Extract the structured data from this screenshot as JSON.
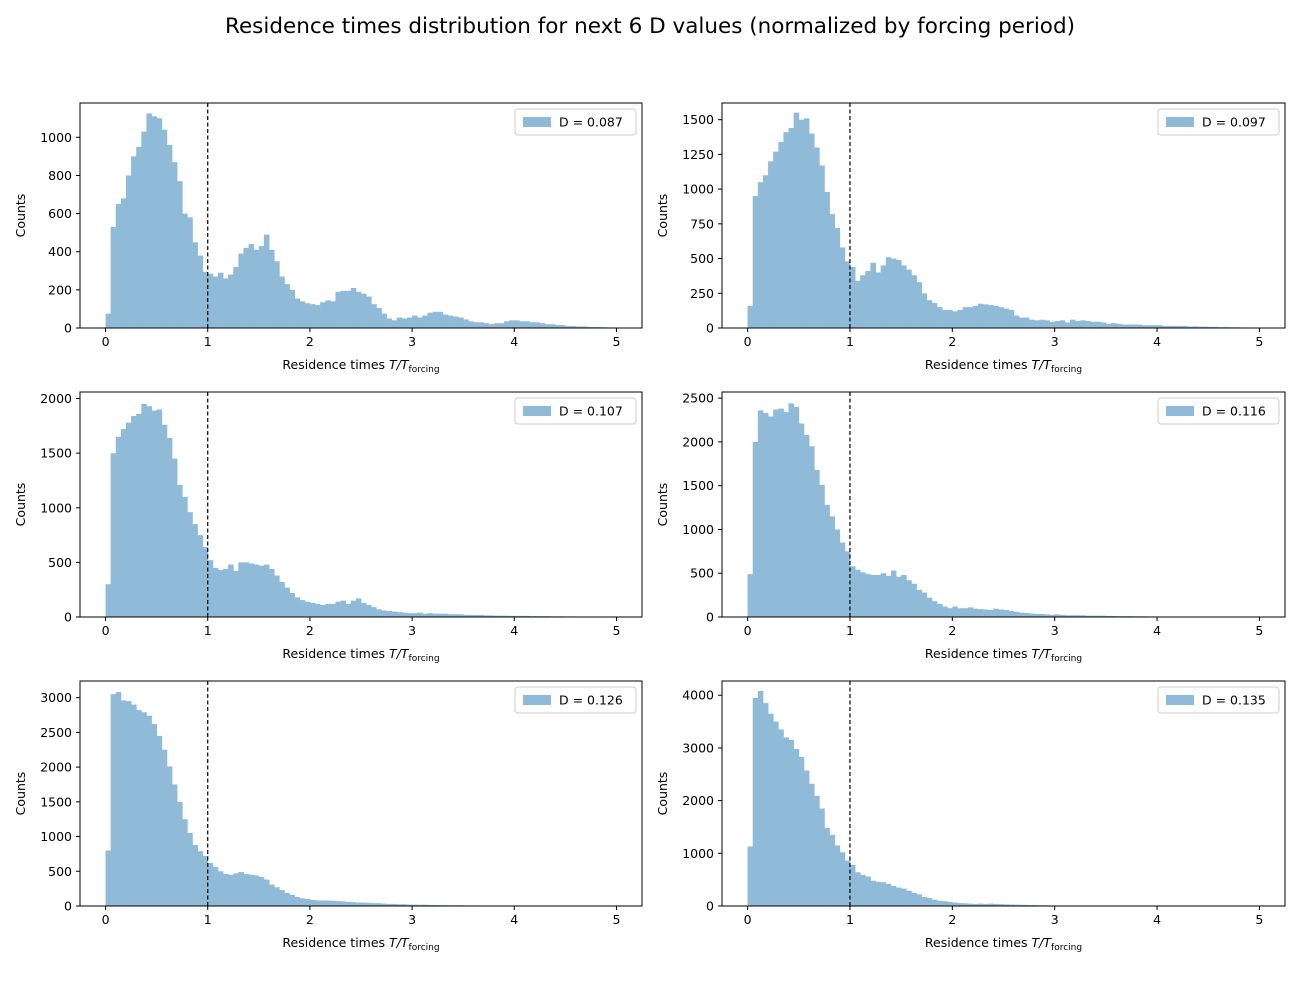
{
  "figure": {
    "title": "Residence times distribution for next 6 D values (normalized by forcing period)"
  },
  "colors": {
    "bar_fill": "#8fbad8",
    "marker_line": "#000000",
    "axes": "#000000"
  },
  "chart_data": [
    {
      "type": "bar",
      "legend": "D = 0.087",
      "legend_position": "upper right",
      "xlabel": "Residence times T/T_forcing",
      "xlabel_main": "Residence times ",
      "xlabel_math": "T/T",
      "xlabel_sub": "forcing",
      "ylabel": "Counts",
      "xlim": [
        -0.25,
        5.25
      ],
      "ylim": [
        0,
        1180
      ],
      "xticks": [
        0,
        1,
        2,
        3,
        4,
        5
      ],
      "yticks": [
        0,
        200,
        400,
        600,
        800,
        1000
      ],
      "vline_x": 1,
      "bin_start": 0,
      "bin_width": 0.05,
      "values": [
        75,
        530,
        650,
        680,
        800,
        900,
        950,
        1030,
        1125,
        1110,
        1100,
        1040,
        960,
        870,
        770,
        600,
        580,
        450,
        380,
        295,
        285,
        270,
        290,
        260,
        280,
        320,
        390,
        420,
        440,
        410,
        430,
        490,
        410,
        350,
        270,
        230,
        200,
        155,
        140,
        130,
        125,
        120,
        135,
        145,
        140,
        190,
        195,
        195,
        210,
        190,
        180,
        165,
        125,
        105,
        75,
        50,
        40,
        55,
        50,
        55,
        65,
        55,
        65,
        80,
        85,
        85,
        70,
        65,
        60,
        55,
        45,
        35,
        30,
        30,
        25,
        20,
        25,
        25,
        35,
        40,
        40,
        35,
        35,
        30,
        30,
        25,
        20,
        20,
        15,
        15,
        10,
        10,
        8,
        8,
        6,
        5,
        5,
        4,
        3,
        2
      ]
    },
    {
      "type": "bar",
      "legend": "D = 0.097",
      "legend_position": "upper right",
      "xlabel": "Residence times T/T_forcing",
      "xlabel_main": "Residence times ",
      "xlabel_math": "T/T",
      "xlabel_sub": "forcing",
      "ylabel": "Counts",
      "xlim": [
        -0.25,
        5.25
      ],
      "ylim": [
        0,
        1620
      ],
      "xticks": [
        0,
        1,
        2,
        3,
        4,
        5
      ],
      "yticks": [
        0,
        250,
        500,
        750,
        1000,
        1250,
        1500
      ],
      "vline_x": 1,
      "bin_start": 0,
      "bin_width": 0.05,
      "values": [
        160,
        950,
        1050,
        1100,
        1200,
        1270,
        1340,
        1410,
        1440,
        1550,
        1500,
        1510,
        1400,
        1300,
        1170,
        980,
        820,
        720,
        580,
        480,
        440,
        340,
        380,
        410,
        470,
        400,
        450,
        510,
        500,
        490,
        450,
        420,
        380,
        330,
        250,
        200,
        180,
        150,
        130,
        130,
        120,
        130,
        150,
        150,
        160,
        175,
        170,
        165,
        160,
        150,
        140,
        130,
        90,
        75,
        75,
        60,
        55,
        60,
        55,
        45,
        50,
        55,
        40,
        60,
        50,
        55,
        50,
        45,
        45,
        40,
        30,
        35,
        30,
        25,
        25,
        25,
        25,
        20,
        20,
        20,
        20,
        15,
        15,
        15,
        15,
        15,
        10,
        12,
        10,
        10,
        8,
        8,
        6,
        6,
        5,
        5,
        4,
        3,
        2,
        2
      ]
    },
    {
      "type": "bar",
      "legend": "D = 0.107",
      "legend_position": "upper right",
      "xlabel": "Residence times T/T_forcing",
      "xlabel_main": "Residence times ",
      "xlabel_math": "T/T",
      "xlabel_sub": "forcing",
      "ylabel": "Counts",
      "xlim": [
        -0.25,
        5.25
      ],
      "ylim": [
        0,
        2060
      ],
      "xticks": [
        0,
        1,
        2,
        3,
        4,
        5
      ],
      "yticks": [
        0,
        500,
        1000,
        1500,
        2000
      ],
      "vline_x": 1,
      "bin_start": 0,
      "bin_width": 0.05,
      "values": [
        300,
        1500,
        1650,
        1720,
        1780,
        1840,
        1860,
        1950,
        1930,
        1890,
        1900,
        1760,
        1640,
        1450,
        1210,
        1100,
        960,
        850,
        750,
        640,
        520,
        450,
        430,
        440,
        480,
        420,
        500,
        500,
        490,
        480,
        470,
        480,
        440,
        380,
        320,
        270,
        220,
        180,
        155,
        140,
        130,
        120,
        110,
        120,
        120,
        140,
        150,
        120,
        150,
        170,
        130,
        110,
        90,
        70,
        60,
        55,
        50,
        45,
        40,
        35,
        35,
        40,
        30,
        35,
        30,
        30,
        30,
        25,
        25,
        25,
        20,
        20,
        18,
        18,
        15,
        15,
        12,
        12,
        12,
        10,
        10,
        10,
        10,
        8,
        8,
        8,
        8,
        6,
        6,
        6,
        5,
        5,
        4,
        4,
        3,
        3,
        3,
        2,
        2,
        2
      ]
    },
    {
      "type": "bar",
      "legend": "D = 0.116",
      "legend_position": "upper right",
      "xlabel": "Residence times T/T_forcing",
      "xlabel_main": "Residence times ",
      "xlabel_math": "T/T",
      "xlabel_sub": "forcing",
      "ylabel": "Counts",
      "xlim": [
        -0.25,
        5.25
      ],
      "ylim": [
        0,
        2570
      ],
      "xticks": [
        0,
        1,
        2,
        3,
        4,
        5
      ],
      "yticks": [
        0,
        500,
        1000,
        1500,
        2000,
        2500
      ],
      "vline_x": 1,
      "bin_start": 0,
      "bin_width": 0.05,
      "values": [
        490,
        2000,
        2360,
        2330,
        2290,
        2370,
        2380,
        2340,
        2440,
        2400,
        2210,
        2080,
        1950,
        1680,
        1510,
        1280,
        1150,
        1000,
        850,
        750,
        580,
        540,
        510,
        490,
        480,
        480,
        500,
        470,
        530,
        460,
        480,
        420,
        380,
        310,
        280,
        220,
        180,
        150,
        120,
        100,
        120,
        100,
        100,
        110,
        95,
        90,
        85,
        80,
        95,
        85,
        80,
        70,
        60,
        50,
        45,
        40,
        35,
        35,
        30,
        25,
        30,
        25,
        20,
        20,
        20,
        20,
        15,
        15,
        15,
        15,
        12,
        12,
        10,
        10,
        10,
        8,
        8,
        8,
        6,
        6,
        6,
        5,
        5,
        5,
        4,
        4,
        4,
        3,
        3,
        3,
        2,
        2,
        2,
        2,
        1,
        1,
        1,
        1,
        1,
        1
      ]
    },
    {
      "type": "bar",
      "legend": "D = 0.126",
      "legend_position": "upper right",
      "xlabel": "Residence times T/T_forcing",
      "xlabel_main": "Residence times ",
      "xlabel_math": "T/T",
      "xlabel_sub": "forcing",
      "ylabel": "Counts",
      "xlim": [
        -0.25,
        5.25
      ],
      "ylim": [
        0,
        3240
      ],
      "xticks": [
        0,
        1,
        2,
        3,
        4,
        5
      ],
      "yticks": [
        0,
        500,
        1000,
        1500,
        2000,
        2500,
        3000
      ],
      "vline_x": 1,
      "bin_start": 0,
      "bin_width": 0.05,
      "values": [
        800,
        3050,
        3080,
        2960,
        2950,
        2900,
        2820,
        2790,
        2740,
        2620,
        2450,
        2250,
        2010,
        1750,
        1500,
        1250,
        1050,
        880,
        790,
        720,
        620,
        560,
        500,
        460,
        450,
        470,
        490,
        460,
        450,
        440,
        420,
        380,
        310,
        270,
        230,
        190,
        160,
        130,
        110,
        100,
        90,
        80,
        80,
        80,
        75,
        70,
        65,
        60,
        55,
        50,
        50,
        45,
        40,
        40,
        35,
        30,
        30,
        25,
        25,
        20,
        20,
        18,
        18,
        15,
        15,
        12,
        12,
        10,
        10,
        10,
        8,
        8,
        8,
        6,
        6,
        6,
        5,
        5,
        5,
        4,
        4,
        4,
        3,
        3,
        3,
        2,
        2,
        2,
        2,
        2,
        1,
        1,
        1,
        1,
        1,
        1,
        1,
        1,
        1,
        1
      ]
    },
    {
      "type": "bar",
      "legend": "D = 0.135",
      "legend_position": "upper right",
      "xlabel": "Residence times T/T_forcing",
      "xlabel_main": "Residence times ",
      "xlabel_math": "T/T",
      "xlabel_sub": "forcing",
      "ylabel": "Counts",
      "xlim": [
        -0.25,
        5.25
      ],
      "ylim": [
        0,
        4270
      ],
      "xticks": [
        0,
        1,
        2,
        3,
        4,
        5
      ],
      "yticks": [
        0,
        1000,
        2000,
        3000,
        4000
      ],
      "vline_x": 1,
      "bin_start": 0,
      "bin_width": 0.05,
      "values": [
        1130,
        3950,
        4080,
        3850,
        3650,
        3500,
        3350,
        3200,
        3150,
        2980,
        2830,
        2570,
        2320,
        2090,
        1850,
        1480,
        1350,
        1150,
        1020,
        860,
        780,
        640,
        590,
        560,
        480,
        460,
        450,
        420,
        380,
        350,
        330,
        290,
        250,
        220,
        170,
        150,
        120,
        100,
        90,
        80,
        65,
        55,
        50,
        45,
        40,
        45,
        40,
        45,
        40,
        35,
        30,
        28,
        25,
        22,
        20,
        18,
        15,
        14,
        12,
        10,
        10,
        8,
        8,
        6,
        6,
        5,
        5,
        4,
        4,
        3,
        3,
        3,
        2,
        2,
        2,
        2,
        2,
        1,
        1,
        1,
        1,
        1,
        1,
        1,
        1,
        1,
        1,
        1,
        1,
        1,
        1,
        1,
        1,
        1,
        1,
        1,
        1,
        1,
        1,
        1
      ]
    }
  ]
}
